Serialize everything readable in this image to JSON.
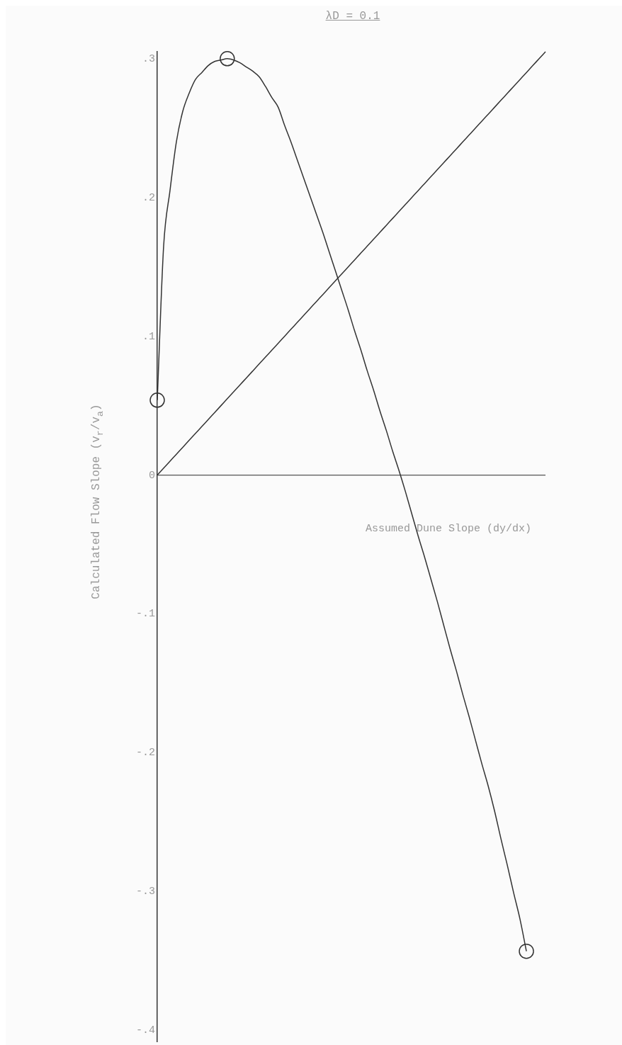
{
  "chart_data": {
    "type": "line",
    "title": "λD = 0.1",
    "xlabel": "Assumed Dune Slope (dy/dx)",
    "ylabel": "Calculated Flow Slope (v$_{r}$/v$_{a}$)",
    "categories": [
      null,
      null,
      null,
      null,
      null,
      null,
      null,
      null,
      null,
      null,
      null,
      null,
      null,
      null,
      null,
      null,
      null,
      null,
      null,
      null,
      null,
      null,
      null,
      null,
      null,
      null,
      null,
      null,
      null,
      null,
      null,
      null,
      null,
      null,
      null,
      null,
      null,
      null,
      null,
      null,
      null,
      null,
      null,
      null,
      null,
      null,
      null,
      null,
      null,
      null,
      null,
      null,
      null,
      null,
      null,
      null,
      null,
      null,
      null,
      null,
      null,
      null
    ],
    "ylim": [
      -0.408,
      0.305
    ],
    "yticks": [
      {
        "value": 0.3,
        "label": ".3"
      },
      {
        "value": 0.2,
        "label": ".2"
      },
      {
        "value": 0.1,
        "label": ".1"
      },
      0,
      {
        "value": -0.1,
        "label": "-.1"
      },
      {
        "value": -0.2,
        "label": "-.2"
      },
      {
        "value": -0.3,
        "label": "-.3"
      },
      {
        "value": -0.4,
        "label": "-.4"
      }
    ],
    "ref_lines": [
      {
        "axis": "y",
        "value": 0,
        "color": "#555555"
      }
    ],
    "tick_labels": "y",
    "grid": false,
    "legend": false,
    "marker": "none",
    "line_style": "solid",
    "series": [
      {
        "color": "#333333",
        "values": [
          0.054,
          0.165,
          0.205,
          0.24,
          0.262,
          0.275,
          0.285,
          0.29,
          0.295,
          0.298,
          0.299,
          0.3,
          0.299,
          0.297,
          0.294,
          0.291,
          0.287,
          0.28,
          0.272,
          0.265,
          0.252,
          0.24,
          0.227,
          0.214,
          0.201,
          0.188,
          0.175,
          0.161,
          0.147,
          0.133,
          0.119,
          0.104,
          0.09,
          0.075,
          0.061,
          0.046,
          0.032,
          0.017,
          0.003,
          -0.012,
          -0.028,
          -0.044,
          -0.059,
          -0.075,
          -0.091,
          -0.108,
          -0.125,
          -0.141,
          -0.158,
          -0.174,
          -0.191,
          -0.208,
          -0.224,
          -0.242,
          -0.262,
          -0.281,
          -0.301,
          -0.32,
          -0.343,
          null,
          null,
          null
        ]
      },
      {
        "color": "#333333",
        "values": [
          0,
          0.005,
          0.01,
          0.015,
          0.02,
          0.025,
          0.03,
          0.035,
          0.04,
          0.045,
          0.05,
          0.055,
          0.06,
          0.065,
          0.07,
          0.075,
          0.08,
          0.085,
          0.09,
          0.095,
          0.1,
          0.105,
          0.11,
          0.115,
          0.12,
          0.125,
          0.13,
          0.135,
          0.14,
          0.145,
          0.15,
          0.155,
          0.16,
          0.165,
          0.17,
          0.175,
          0.18,
          0.185,
          0.19,
          0.195,
          0.2,
          0.205,
          0.21,
          0.215,
          0.22,
          0.225,
          0.23,
          0.235,
          0.24,
          0.245,
          0.25,
          0.255,
          0.26,
          0.265,
          0.27,
          0.275,
          0.28,
          0.285,
          0.29,
          0.295,
          0.3,
          0.305
        ]
      },
      {
        "type": "scatter",
        "marker": "circle",
        "color": "#333333",
        "values": [
          0.054,
          null,
          null,
          null,
          null,
          null,
          null,
          null,
          null,
          null,
          null,
          0.3,
          null,
          null,
          null,
          null,
          null,
          null,
          null,
          null,
          null,
          null,
          null,
          null,
          null,
          null,
          null,
          null,
          null,
          null,
          null,
          null,
          null,
          null,
          null,
          null,
          null,
          null,
          null,
          null,
          null,
          null,
          null,
          null,
          null,
          null,
          null,
          null,
          null,
          null,
          null,
          null,
          null,
          null,
          null,
          null,
          null,
          null,
          -0.343,
          null,
          null,
          null
        ]
      }
    ]
  }
}
